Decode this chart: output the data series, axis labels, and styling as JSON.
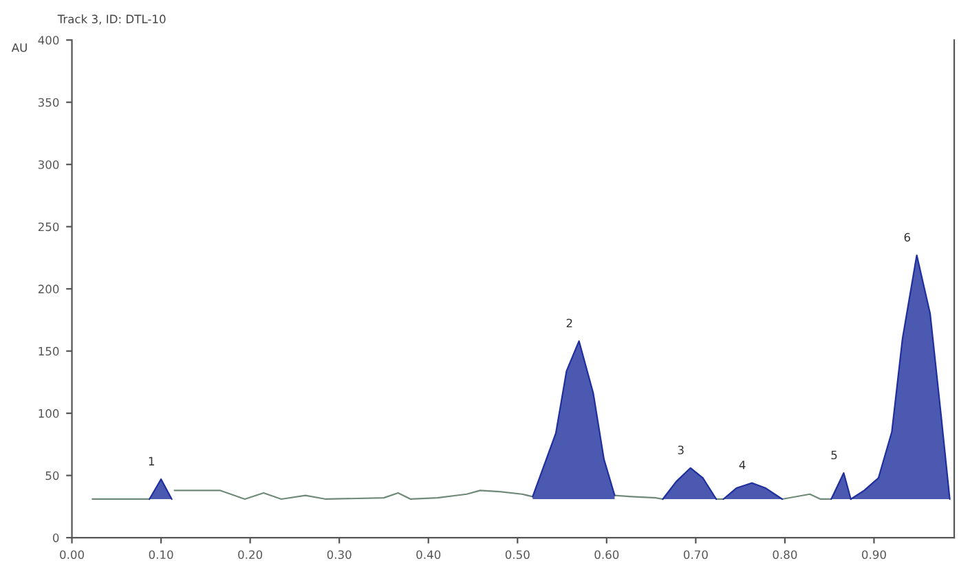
{
  "chart_data": {
    "type": "line",
    "title": "Track 3, ID: DTL-10",
    "ylabel": "AU",
    "xlim": [
      0,
      0.99
    ],
    "xticks": [
      {
        "value": 0,
        "label": "0.00"
      },
      {
        "value": 0.1,
        "label": "0.10"
      },
      {
        "value": 0.2,
        "label": "0.20"
      },
      {
        "value": 0.3,
        "label": "0.30"
      },
      {
        "value": 0.4,
        "label": "0.40"
      },
      {
        "value": 0.5,
        "label": "0.50"
      },
      {
        "value": 0.6,
        "label": "0.60"
      },
      {
        "value": 0.7,
        "label": "0.70"
      },
      {
        "value": 0.8,
        "label": "0.80"
      },
      {
        "value": 0.9,
        "label": "0.90"
      }
    ],
    "ylim": [
      0,
      400
    ],
    "yticks": [
      0,
      50,
      100,
      150,
      200,
      250,
      300,
      350,
      400
    ],
    "grid": false,
    "marker": "none",
    "line_style": "solid",
    "series": [
      {
        "color": "#6f8a78",
        "x": [
          0.023,
          0.087,
          0.1,
          0.115,
          0.166,
          0.194,
          0.215,
          0.235,
          0.262,
          0.285,
          0.35,
          0.366,
          0.38,
          0.41,
          0.443,
          0.458,
          0.48,
          0.505,
          0.517,
          0.543,
          0.555,
          0.569,
          0.585,
          0.597,
          0.609,
          0.628,
          0.655,
          0.663,
          0.678,
          0.694,
          0.708,
          0.723,
          0.731,
          0.746,
          0.763,
          0.778,
          0.797,
          0.828,
          0.84,
          0.852
        ],
        "values": [
          31,
          31,
          null,
          38,
          38,
          31,
          36,
          31,
          34,
          31,
          32,
          36,
          31,
          32,
          35,
          38,
          37,
          35,
          33,
          null,
          null,
          null,
          null,
          null,
          34,
          33,
          32,
          31,
          null,
          null,
          null,
          31,
          31,
          null,
          null,
          null,
          31,
          35,
          31,
          31
        ]
      },
      {
        "type": "line",
        "color": "#1f2f9e",
        "x": [
          0.087,
          0.1,
          0.112
        ],
        "values": [
          31,
          47,
          31
        ],
        "lower": [
          31,
          31,
          31
        ],
        "upper": [
          31,
          47,
          31
        ]
      },
      {
        "type": "line",
        "color": "#1f2f9e",
        "x": [
          0.517,
          0.543,
          0.555,
          0.569,
          0.585,
          0.597,
          0.609
        ],
        "values": [
          33,
          84,
          134,
          158,
          116,
          63,
          34
        ],
        "lower": [
          31,
          31,
          31,
          31,
          31,
          31,
          31
        ],
        "upper": [
          33,
          84,
          134,
          158,
          116,
          63,
          34
        ]
      },
      {
        "type": "line",
        "color": "#1f2f9e",
        "x": [
          0.663,
          0.678,
          0.694,
          0.708,
          0.723
        ],
        "values": [
          31,
          45,
          56,
          48,
          31
        ],
        "lower": [
          31,
          31,
          31,
          31,
          31
        ],
        "upper": [
          31,
          45,
          56,
          48,
          31
        ]
      },
      {
        "type": "line",
        "color": "#1f2f9e",
        "x": [
          0.731,
          0.746,
          0.763,
          0.778,
          0.797
        ],
        "values": [
          31,
          40,
          44,
          40,
          31
        ],
        "lower": [
          31,
          31,
          31,
          31,
          31
        ],
        "upper": [
          31,
          40,
          44,
          40,
          31
        ]
      },
      {
        "type": "line",
        "color": "#1f2f9e",
        "x": [
          0.852,
          0.858,
          0.866,
          0.874
        ],
        "values": [
          31,
          40,
          52,
          31
        ],
        "lower": [
          31,
          31,
          31,
          31
        ],
        "upper": [
          31,
          40,
          52,
          31
        ]
      },
      {
        "type": "line",
        "color": "#1f2f9e",
        "x": [
          0.874,
          0.889,
          0.905,
          0.92,
          0.932,
          0.948,
          0.963,
          0.975,
          0.985
        ],
        "values": [
          31,
          38,
          48,
          85,
          160,
          227,
          180,
          100,
          31
        ],
        "lower": [
          31,
          31,
          31,
          31,
          31,
          31,
          31,
          31,
          31
        ],
        "upper": [
          31,
          38,
          48,
          85,
          160,
          227,
          180,
          100,
          31
        ]
      }
    ],
    "annotations": [
      {
        "text": "1",
        "x": 0.1,
        "y": 47
      },
      {
        "text": "2",
        "x": 0.569,
        "y": 158
      },
      {
        "text": "3",
        "x": 0.694,
        "y": 56
      },
      {
        "text": "4",
        "x": 0.763,
        "y": 44
      },
      {
        "text": "5",
        "x": 0.866,
        "y": 52
      },
      {
        "text": "6",
        "x": 0.948,
        "y": 227
      }
    ]
  }
}
